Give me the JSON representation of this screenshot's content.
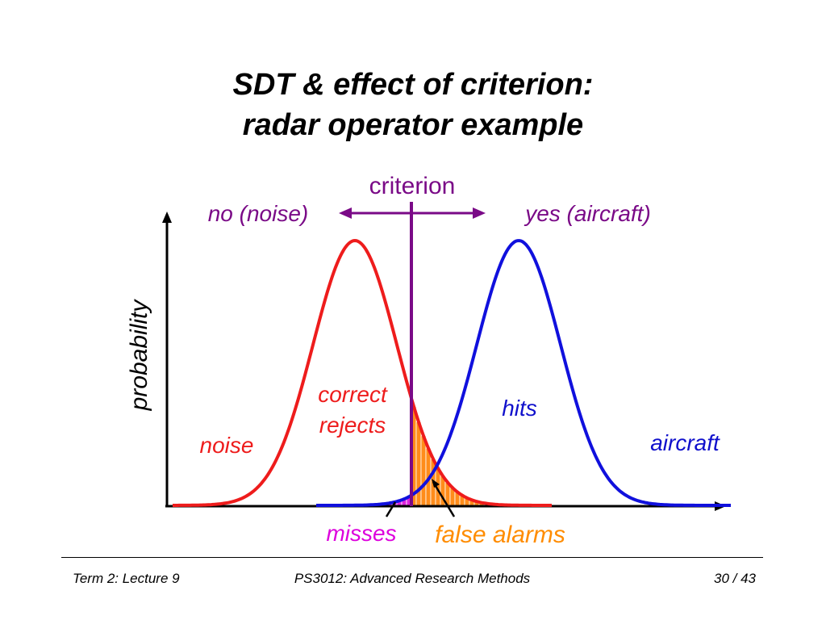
{
  "title": {
    "line1": "SDT & effect of criterion:",
    "line2": "radar operator example"
  },
  "diagram": {
    "criterion_label": "criterion",
    "no_label": "no (noise)",
    "yes_label": "yes (aircraft)",
    "y_axis_label": "probability",
    "correct_rejects_line1": "correct",
    "correct_rejects_line2": "rejects",
    "hits_label": "hits",
    "noise_label": "noise",
    "aircraft_label": "aircraft",
    "misses_label": "misses",
    "false_alarms_label": "false alarms",
    "colors": {
      "noise_curve": "#ee1c1c",
      "signal_curve": "#1010dd",
      "criterion": "#7a0a87",
      "false_alarm_fill": "#ff8c1a",
      "miss_fill": "#dd22dd",
      "misses_text": "#dd00dd",
      "hits_text": "#1010cc",
      "false_alarms_text": "#ff8c00"
    }
  },
  "footer": {
    "left": "Term 2: Lecture 9",
    "center": "PS3012: Advanced Research Methods",
    "right": "30 / 43"
  }
}
